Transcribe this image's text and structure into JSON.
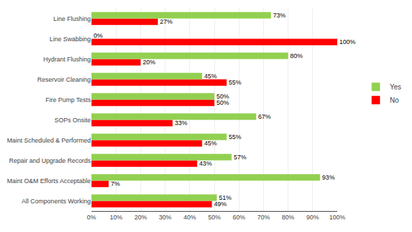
{
  "chart_data": {
    "type": "bar",
    "orientation": "horizontal",
    "categories": [
      "All Components Working",
      "Maint O&M Efforts Acceptable",
      "Repair and Upgrade Records",
      "Maint Scheduled & Performed",
      "SOPs Onsite",
      "Fire Pump Tests",
      "Reservoir Cleaning",
      "Hydrant Flushing",
      "Line Swabbing",
      "Line Flushing"
    ],
    "series": [
      {
        "name": "Yes",
        "color": "#92D050",
        "values": [
          51,
          93,
          57,
          55,
          67,
          50,
          45,
          80,
          0,
          73
        ],
        "value_labels": [
          "51%",
          "93%",
          "57%",
          "55%",
          "67%",
          "50%",
          "45%",
          "80%",
          "0%",
          "73%"
        ]
      },
      {
        "name": "No",
        "color": "#FF0000",
        "values": [
          49,
          7,
          43,
          45,
          33,
          50,
          55,
          20,
          100,
          27
        ],
        "value_labels": [
          "49%",
          "7%",
          "43%",
          "45%",
          "33%",
          "50%",
          "55%",
          "20%",
          "100%",
          "27%"
        ]
      }
    ],
    "xlim": [
      0,
      100
    ],
    "xticks": [
      {
        "value": 0,
        "label": "0%"
      },
      {
        "value": 10,
        "label": "10%"
      },
      {
        "value": 20,
        "label": "20%"
      },
      {
        "value": 30,
        "label": "30%"
      },
      {
        "value": 40,
        "label": "40%"
      },
      {
        "value": 50,
        "label": "50%"
      },
      {
        "value": 60,
        "label": "60%"
      },
      {
        "value": 70,
        "label": "70%"
      },
      {
        "value": 80,
        "label": "80%"
      },
      {
        "value": 90,
        "label": "90%"
      },
      {
        "value": 100,
        "label": "100%"
      }
    ],
    "grid": true,
    "data_labels": true,
    "legend": "right"
  }
}
